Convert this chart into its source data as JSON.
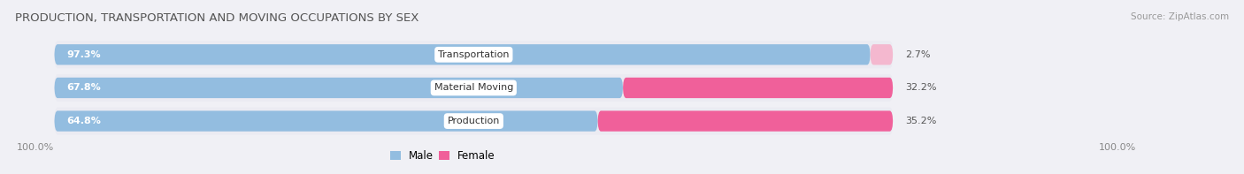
{
  "title": "PRODUCTION, TRANSPORTATION AND MOVING OCCUPATIONS BY SEX",
  "source": "Source: ZipAtlas.com",
  "categories": [
    "Transportation",
    "Material Moving",
    "Production"
  ],
  "male_values": [
    97.3,
    67.8,
    64.8
  ],
  "female_values": [
    2.7,
    32.2,
    35.2
  ],
  "male_color": "#93bde0",
  "female_colors": [
    "#f4b8cf",
    "#f0609a",
    "#f0609a"
  ],
  "bar_bg_color": "#e6e6ee",
  "row_bg_color": "#ebebf2",
  "male_label": "Male",
  "female_label": "Female",
  "title_fontsize": 9.5,
  "source_fontsize": 7.5,
  "tick_fontsize": 8,
  "bar_label_fontsize": 8,
  "cat_label_fontsize": 8,
  "axis_label_left": "100.0%",
  "axis_label_right": "100.0%",
  "background_color": "#f0f0f5"
}
